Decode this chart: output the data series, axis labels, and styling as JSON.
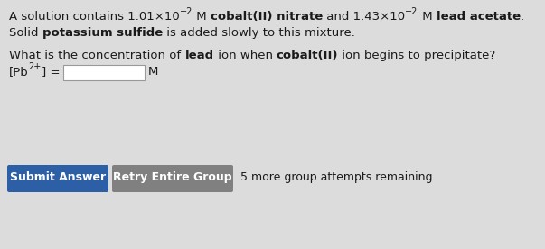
{
  "background_color": "#dcdcdc",
  "text_color": "#1a1a1a",
  "fontsize_main": 9.5,
  "fontsize_btn": 9.0,
  "btn1_text": "Submit Answer",
  "btn1_color": "#2d5fa6",
  "btn1_text_color": "#ffffff",
  "btn2_text": "Retry Entire Group",
  "btn2_color": "#808080",
  "btn2_text_color": "#ffffff",
  "remaining_text": "5 more group attempts remaining",
  "fig_width": 6.03,
  "fig_height": 2.76,
  "dpi": 100
}
